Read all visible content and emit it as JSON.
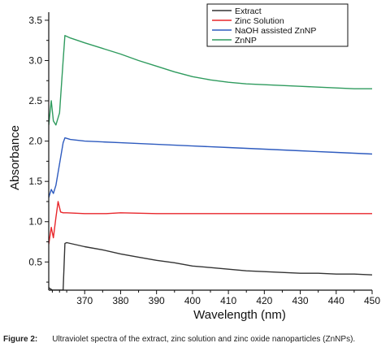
{
  "caption": {
    "label": "Figure 2:",
    "text": "Ultraviolet spectra of the extract, zinc solution and zinc oxide nanoparticles (ZnNPs)."
  },
  "chart_data": {
    "type": "line",
    "title": "",
    "xlabel": "Wavelength (nm)",
    "ylabel": "Absorbance",
    "xlim": [
      360,
      450
    ],
    "ylim": [
      0.15,
      3.6
    ],
    "xticks": [
      370,
      380,
      390,
      400,
      410,
      420,
      430,
      440,
      450
    ],
    "yticks": [
      0.5,
      1.0,
      1.5,
      2.0,
      2.5,
      3.0,
      3.5
    ],
    "xtick_labels": [
      "370",
      "380",
      "390",
      "400",
      "410",
      "420",
      "430",
      "440",
      "450"
    ],
    "ytick_labels": [
      "0.5",
      "1.0",
      "1.5",
      "2.0",
      "2.5",
      "3.0",
      "3.5"
    ],
    "grid": false,
    "legend_position": "top-right",
    "series": [
      {
        "name": "Extract",
        "color": "#333333",
        "x": [
          360,
          361,
          362,
          363,
          364,
          364.5,
          365,
          366,
          368,
          370,
          375,
          380,
          385,
          390,
          395,
          400,
          405,
          410,
          415,
          420,
          425,
          430,
          435,
          440,
          445,
          450
        ],
        "y": [
          0.18,
          0.15,
          0.15,
          0.15,
          0.15,
          0.73,
          0.74,
          0.73,
          0.71,
          0.69,
          0.65,
          0.6,
          0.56,
          0.52,
          0.49,
          0.45,
          0.43,
          0.41,
          0.39,
          0.38,
          0.37,
          0.36,
          0.36,
          0.35,
          0.35,
          0.34
        ]
      },
      {
        "name": "Zinc Solution",
        "color": "#e8262b",
        "x": [
          360,
          360.7,
          361.3,
          362.0,
          362.6,
          363.3,
          364.0,
          365,
          370,
          376,
          380,
          390,
          400,
          410,
          420,
          430,
          440,
          450
        ],
        "y": [
          0.72,
          0.93,
          0.8,
          1.05,
          1.25,
          1.12,
          1.11,
          1.11,
          1.1,
          1.1,
          1.11,
          1.1,
          1.1,
          1.1,
          1.1,
          1.1,
          1.1,
          1.1
        ]
      },
      {
        "name": "NaOH assisted ZnNP",
        "color": "#2e5bbf",
        "x": [
          360,
          360.7,
          361.3,
          362.0,
          364.0,
          364.5,
          366,
          370,
          375,
          380,
          390,
          400,
          410,
          420,
          430,
          440,
          450
        ],
        "y": [
          1.3,
          1.4,
          1.35,
          1.45,
          1.98,
          2.04,
          2.02,
          2.0,
          1.99,
          1.98,
          1.96,
          1.94,
          1.92,
          1.9,
          1.88,
          1.86,
          1.84
        ]
      },
      {
        "name": "ZnNP",
        "color": "#2f9b5e",
        "x": [
          360,
          360.7,
          361.3,
          362.0,
          363.0,
          364.0,
          364.5,
          366,
          368,
          370,
          375,
          380,
          385,
          390,
          395,
          400,
          405,
          410,
          415,
          420,
          425,
          430,
          435,
          440,
          445,
          450
        ],
        "y": [
          2.2,
          2.5,
          2.25,
          2.2,
          2.35,
          3.0,
          3.31,
          3.28,
          3.25,
          3.22,
          3.15,
          3.08,
          3.0,
          2.93,
          2.86,
          2.8,
          2.76,
          2.73,
          2.71,
          2.7,
          2.69,
          2.68,
          2.67,
          2.66,
          2.65,
          2.65
        ]
      }
    ]
  }
}
